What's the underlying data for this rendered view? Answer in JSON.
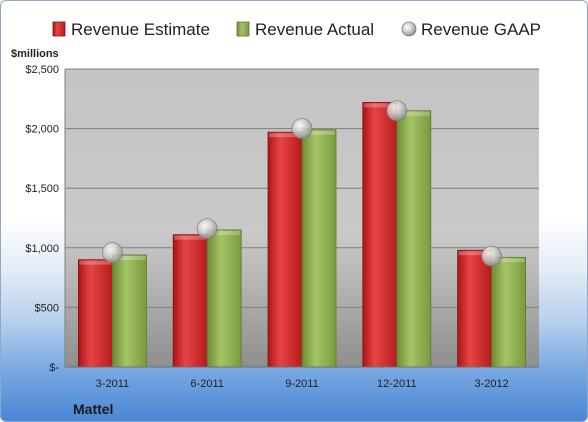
{
  "chart_data": {
    "type": "bar",
    "title": "",
    "ylabel": "$millions",
    "xlabel": "",
    "brand": "Mattel",
    "categories": [
      "3-2011",
      "6-2011",
      "9-2011",
      "12-2011",
      "3-2012"
    ],
    "series": [
      {
        "name": "Revenue Estimate",
        "kind": "bar",
        "color": "#d62c2c",
        "values": [
          900,
          1110,
          1970,
          2220,
          980
        ]
      },
      {
        "name": "Revenue Actual",
        "kind": "bar",
        "color": "#8fb04e",
        "values": [
          940,
          1150,
          1990,
          2150,
          920
        ]
      },
      {
        "name": "Revenue GAAP",
        "kind": "marker",
        "color": "#c8c8c8",
        "values": [
          960,
          1160,
          2000,
          2150,
          930
        ]
      }
    ],
    "ylim": [
      0,
      2500
    ],
    "yticks": [
      0,
      500,
      1000,
      1500,
      2000,
      2500
    ],
    "ytick_labels": [
      "$-",
      "$500",
      "$1,000",
      "$1,500",
      "$2,000",
      "$2,500"
    ],
    "grid": true,
    "legend": "top"
  }
}
